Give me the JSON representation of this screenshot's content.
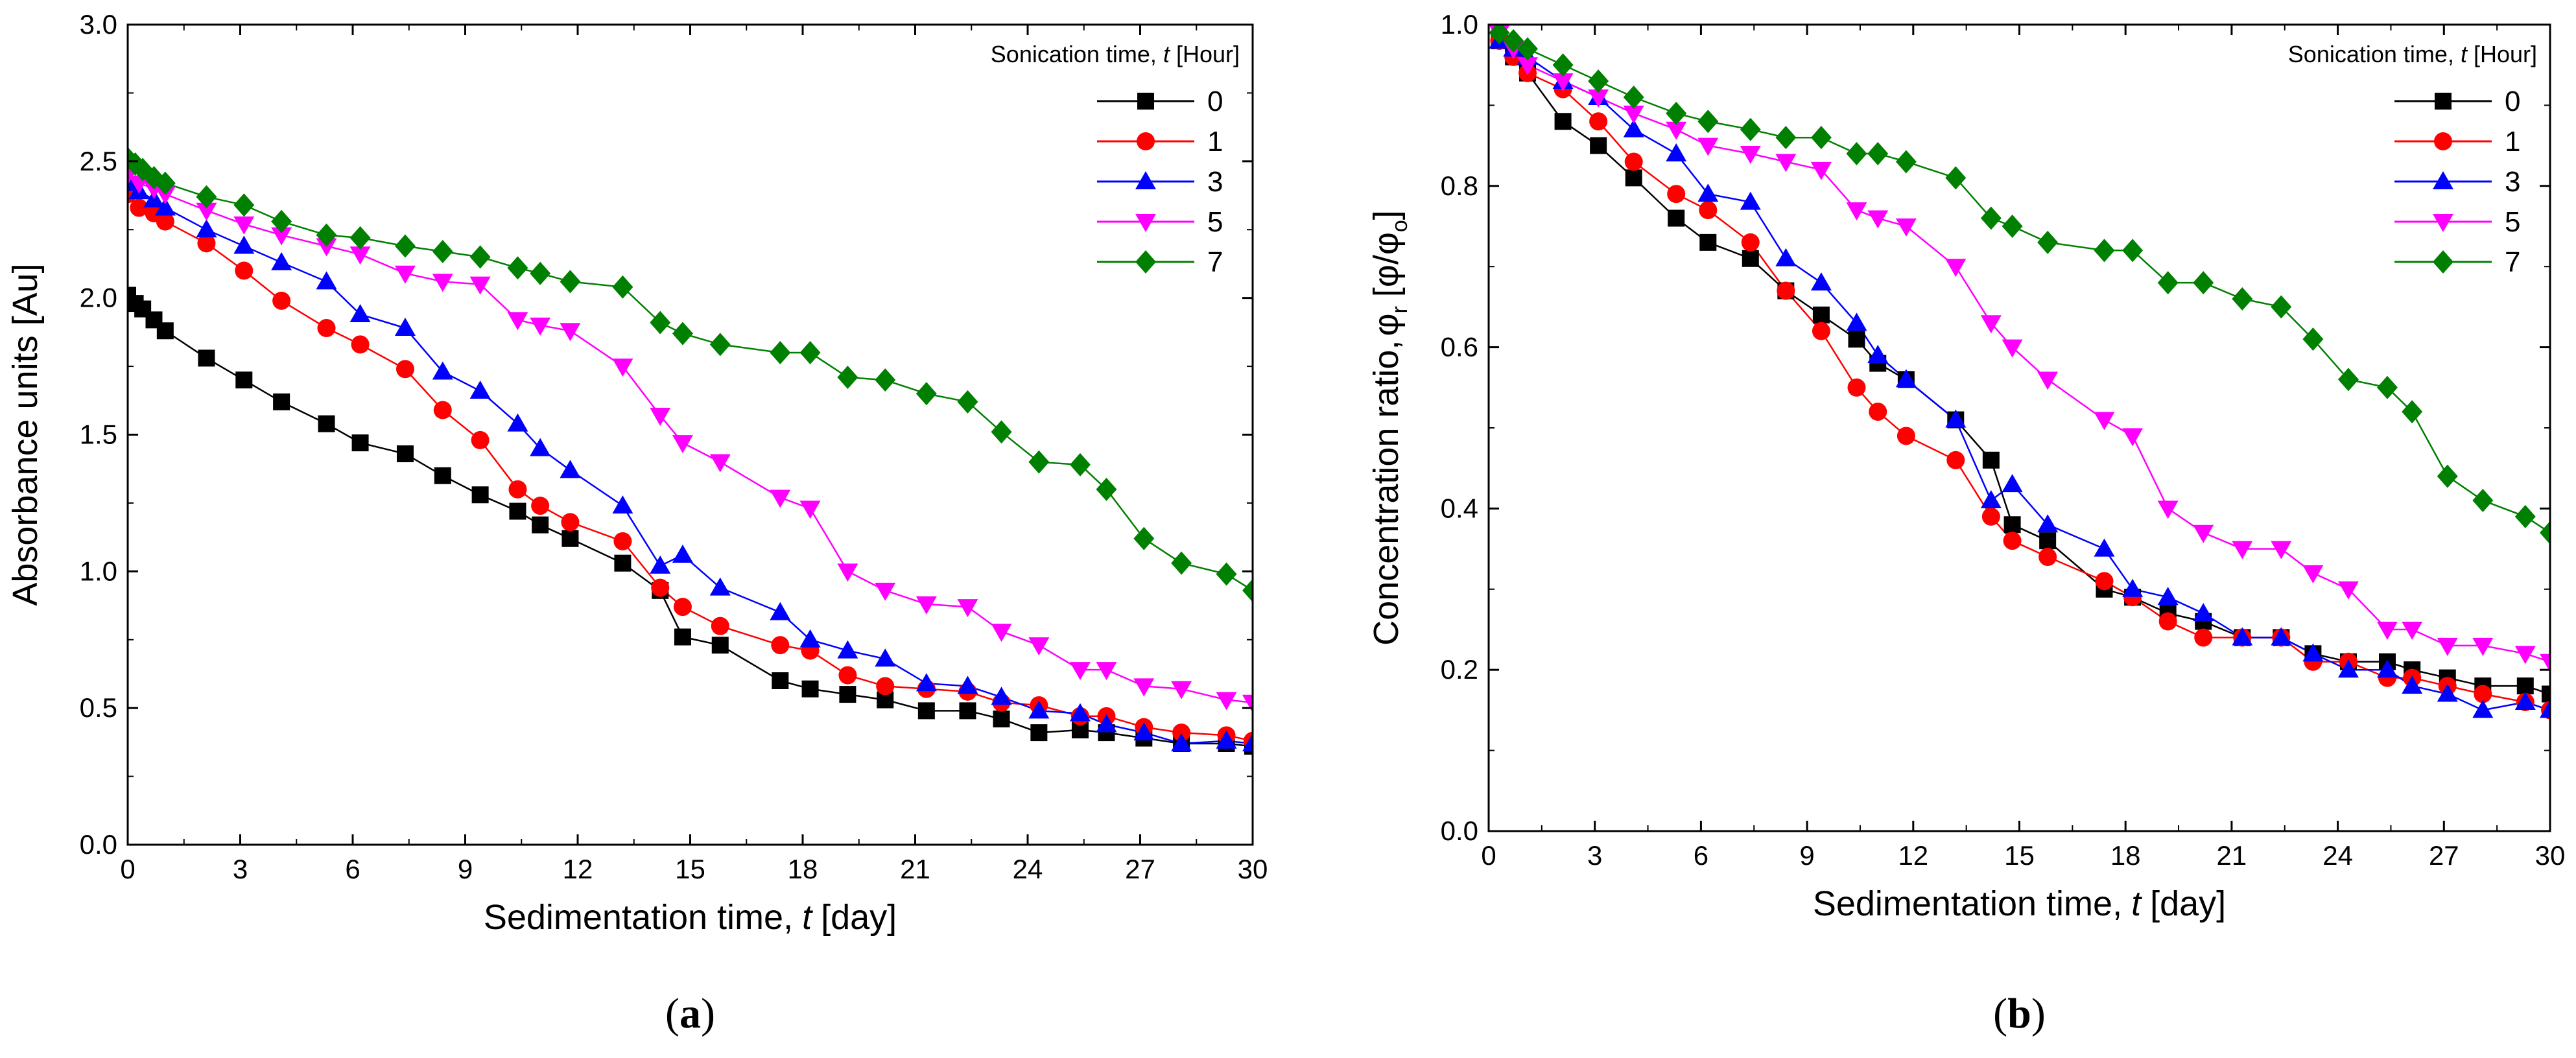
{
  "chart_data": [
    {
      "panel": "(a)",
      "panel_letter": "a",
      "type": "line",
      "xlabel": "Sedimentation time,",
      "xlabel_var": "t",
      "xlabel_unit": "[day]",
      "ylabel": "Absorbance units [Au]",
      "xlim": [
        0,
        30
      ],
      "ylim": [
        0,
        3.0
      ],
      "xticks": [
        0,
        3,
        6,
        9,
        12,
        15,
        18,
        21,
        24,
        27,
        30
      ],
      "yticks": [
        "0.0",
        "0.5",
        "1.0",
        "1.5",
        "2.0",
        "2.5",
        "3.0"
      ],
      "legend_title": "Sonication time,",
      "legend_title_var": "t",
      "legend_title_unit": "[Hour]",
      "legend_position": "top-right",
      "series": [
        {
          "name": "0",
          "color": "#000000",
          "marker": "square",
          "x": [
            0,
            0.2,
            0.4,
            0.7,
            1.0,
            2.1,
            3.1,
            4.1,
            5.3,
            6.2,
            7.4,
            8.4,
            9.4,
            10.4,
            11.0,
            11.8,
            13.2,
            14.2,
            14.8,
            15.8,
            17.4,
            18.2,
            19.2,
            20.2,
            21.3,
            22.4,
            23.3,
            24.3,
            25.4,
            26.1,
            27.1,
            28.1,
            29.3,
            30
          ],
          "y": [
            2.01,
            1.98,
            1.96,
            1.92,
            1.88,
            1.78,
            1.7,
            1.62,
            1.54,
            1.47,
            1.43,
            1.35,
            1.28,
            1.22,
            1.17,
            1.12,
            1.03,
            0.93,
            0.76,
            0.73,
            0.6,
            0.57,
            0.55,
            0.53,
            0.49,
            0.49,
            0.46,
            0.41,
            0.42,
            0.41,
            0.39,
            0.37,
            0.37,
            0.36
          ]
        },
        {
          "name": "1",
          "color": "#ff0000",
          "marker": "circle",
          "x": [
            0,
            0.3,
            0.7,
            1.0,
            2.1,
            3.1,
            4.1,
            5.3,
            6.2,
            7.4,
            8.4,
            9.4,
            10.4,
            11.0,
            11.8,
            13.2,
            14.2,
            14.8,
            15.8,
            17.4,
            18.2,
            19.2,
            20.2,
            21.3,
            22.4,
            23.3,
            24.3,
            25.4,
            26.1,
            27.1,
            28.1,
            29.3,
            30
          ],
          "y": [
            2.38,
            2.33,
            2.31,
            2.28,
            2.2,
            2.1,
            1.99,
            1.89,
            1.83,
            1.74,
            1.59,
            1.48,
            1.3,
            1.24,
            1.18,
            1.11,
            0.94,
            0.87,
            0.8,
            0.73,
            0.71,
            0.62,
            0.58,
            0.57,
            0.56,
            0.52,
            0.51,
            0.47,
            0.47,
            0.43,
            0.41,
            0.4,
            0.38
          ]
        },
        {
          "name": "3",
          "color": "#0000ff",
          "marker": "triangle-up",
          "x": [
            0,
            0.3,
            0.7,
            1.0,
            2.1,
            3.1,
            4.1,
            5.3,
            6.2,
            7.4,
            8.4,
            9.4,
            10.4,
            11.0,
            11.8,
            13.2,
            14.2,
            14.8,
            15.8,
            17.4,
            18.2,
            19.2,
            20.2,
            21.3,
            22.4,
            23.3,
            24.3,
            25.4,
            26.1,
            27.1,
            28.1,
            29.3,
            30
          ],
          "y": [
            2.42,
            2.39,
            2.36,
            2.33,
            2.25,
            2.19,
            2.13,
            2.06,
            1.94,
            1.89,
            1.73,
            1.66,
            1.54,
            1.45,
            1.37,
            1.24,
            1.02,
            1.06,
            0.94,
            0.85,
            0.75,
            0.71,
            0.68,
            0.59,
            0.58,
            0.54,
            0.49,
            0.48,
            0.44,
            0.41,
            0.37,
            0.38,
            0.37
          ]
        },
        {
          "name": "5",
          "color": "#ff00ff",
          "marker": "triangle-down",
          "x": [
            0,
            0.3,
            0.7,
            1.0,
            2.1,
            3.1,
            4.1,
            5.3,
            6.2,
            7.4,
            8.4,
            9.4,
            10.4,
            11.0,
            11.8,
            13.2,
            14.2,
            14.8,
            15.8,
            17.4,
            18.2,
            19.2,
            20.2,
            21.3,
            22.4,
            23.3,
            24.3,
            25.4,
            26.1,
            27.1,
            28.1,
            29.3,
            30
          ],
          "y": [
            2.45,
            2.42,
            2.4,
            2.38,
            2.32,
            2.27,
            2.23,
            2.19,
            2.16,
            2.09,
            2.06,
            2.05,
            1.92,
            1.9,
            1.88,
            1.75,
            1.57,
            1.47,
            1.4,
            1.27,
            1.23,
            1.0,
            0.93,
            0.88,
            0.87,
            0.78,
            0.73,
            0.64,
            0.64,
            0.58,
            0.57,
            0.53,
            0.52
          ]
        },
        {
          "name": "7",
          "color": "#008000",
          "marker": "diamond",
          "x": [
            0,
            0.2,
            0.4,
            0.7,
            1.0,
            2.1,
            3.1,
            4.1,
            5.3,
            6.2,
            7.4,
            8.4,
            9.4,
            10.4,
            11.0,
            11.8,
            13.2,
            14.2,
            14.8,
            15.8,
            17.4,
            18.2,
            19.2,
            20.2,
            21.3,
            22.4,
            23.3,
            24.3,
            25.4,
            26.1,
            27.1,
            28.1,
            29.3,
            30
          ],
          "y": [
            2.51,
            2.49,
            2.47,
            2.44,
            2.42,
            2.37,
            2.34,
            2.28,
            2.23,
            2.22,
            2.19,
            2.17,
            2.15,
            2.11,
            2.09,
            2.06,
            2.04,
            1.91,
            1.87,
            1.83,
            1.8,
            1.8,
            1.71,
            1.7,
            1.65,
            1.62,
            1.51,
            1.4,
            1.39,
            1.3,
            1.12,
            1.03,
            0.99,
            0.93
          ]
        }
      ]
    },
    {
      "panel": "(b)",
      "panel_letter": "b",
      "type": "line",
      "xlabel": "Sedimentation time,",
      "xlabel_var": "t",
      "xlabel_unit": "[day]",
      "ylabel": "Concentration ratio,",
      "ylabel_phi": "φ",
      "ylabel_sub_r": "r",
      "ylabel_bracket": "[φ/φ",
      "ylabel_sub_o": "o",
      "ylabel_close": "]",
      "xlim": [
        0,
        30
      ],
      "ylim": [
        0,
        1.0
      ],
      "xticks": [
        0,
        3,
        6,
        9,
        12,
        15,
        18,
        21,
        24,
        27,
        30
      ],
      "yticks": [
        "0.0",
        "0.2",
        "0.4",
        "0.6",
        "0.8",
        "1.0"
      ],
      "legend_title": "Sonication time,",
      "legend_title_var": "t",
      "legend_title_unit": "[Hour]",
      "legend_position": "top-right",
      "series": [
        {
          "name": "0",
          "color": "#000000",
          "marker": "square",
          "x": [
            0.3,
            0.7,
            1.1,
            2.1,
            3.1,
            4.1,
            5.3,
            6.2,
            7.4,
            8.4,
            9.4,
            10.4,
            11.0,
            11.8,
            13.2,
            14.2,
            14.8,
            15.8,
            17.4,
            18.2,
            19.2,
            20.2,
            21.3,
            22.4,
            23.3,
            24.3,
            25.4,
            26.1,
            27.1,
            28.1,
            29.3,
            30
          ],
          "y": [
            0.98,
            0.96,
            0.94,
            0.88,
            0.85,
            0.81,
            0.76,
            0.73,
            0.71,
            0.67,
            0.64,
            0.61,
            0.58,
            0.56,
            0.51,
            0.46,
            0.38,
            0.36,
            0.3,
            0.29,
            0.27,
            0.26,
            0.24,
            0.24,
            0.22,
            0.21,
            0.21,
            0.2,
            0.19,
            0.18,
            0.18,
            0.17
          ]
        },
        {
          "name": "1",
          "color": "#ff0000",
          "marker": "circle",
          "x": [
            0.3,
            0.7,
            1.1,
            2.1,
            3.1,
            4.1,
            5.3,
            6.2,
            7.4,
            8.4,
            9.4,
            10.4,
            11.0,
            11.8,
            13.2,
            14.2,
            14.8,
            15.8,
            17.4,
            18.2,
            19.2,
            20.2,
            21.3,
            22.4,
            23.3,
            24.3,
            25.4,
            26.1,
            27.1,
            28.1,
            29.3,
            30
          ],
          "y": [
            0.98,
            0.96,
            0.94,
            0.92,
            0.88,
            0.83,
            0.79,
            0.77,
            0.73,
            0.67,
            0.62,
            0.55,
            0.52,
            0.49,
            0.46,
            0.39,
            0.36,
            0.34,
            0.31,
            0.29,
            0.26,
            0.24,
            0.24,
            0.24,
            0.21,
            0.21,
            0.19,
            0.19,
            0.18,
            0.17,
            0.16,
            0.15
          ]
        },
        {
          "name": "3",
          "color": "#0000ff",
          "marker": "triangle-up",
          "x": [
            0.3,
            0.7,
            1.1,
            2.1,
            3.1,
            4.1,
            5.3,
            6.2,
            7.4,
            8.4,
            9.4,
            10.4,
            11.0,
            11.8,
            13.2,
            14.2,
            14.8,
            15.8,
            17.4,
            18.2,
            19.2,
            20.2,
            21.3,
            22.4,
            23.3,
            24.3,
            25.4,
            26.1,
            27.1,
            28.1,
            29.3,
            30
          ],
          "y": [
            0.98,
            0.97,
            0.96,
            0.93,
            0.91,
            0.87,
            0.84,
            0.79,
            0.78,
            0.71,
            0.68,
            0.63,
            0.59,
            0.56,
            0.51,
            0.41,
            0.43,
            0.38,
            0.35,
            0.3,
            0.29,
            0.27,
            0.24,
            0.24,
            0.22,
            0.2,
            0.2,
            0.18,
            0.17,
            0.15,
            0.16,
            0.15
          ]
        },
        {
          "name": "5",
          "color": "#ff00ff",
          "marker": "triangle-down",
          "x": [
            0.3,
            0.7,
            1.1,
            2.1,
            3.1,
            4.1,
            5.3,
            6.2,
            7.4,
            8.4,
            9.4,
            10.4,
            11.0,
            11.8,
            13.2,
            14.2,
            14.8,
            15.8,
            17.4,
            18.2,
            19.2,
            20.2,
            21.3,
            22.4,
            23.3,
            24.3,
            25.4,
            26.1,
            27.1,
            28.1,
            29.3,
            30
          ],
          "y": [
            0.99,
            0.97,
            0.95,
            0.93,
            0.91,
            0.89,
            0.87,
            0.85,
            0.84,
            0.83,
            0.82,
            0.77,
            0.76,
            0.75,
            0.7,
            0.63,
            0.6,
            0.56,
            0.51,
            0.49,
            0.4,
            0.37,
            0.35,
            0.35,
            0.32,
            0.3,
            0.25,
            0.25,
            0.23,
            0.23,
            0.22,
            0.21
          ]
        },
        {
          "name": "7",
          "color": "#008000",
          "marker": "diamond",
          "x": [
            0.3,
            0.7,
            1.1,
            2.1,
            3.1,
            4.1,
            5.3,
            6.2,
            7.4,
            8.4,
            9.4,
            10.4,
            11.0,
            11.8,
            13.2,
            14.2,
            14.8,
            15.8,
            17.4,
            18.2,
            19.2,
            20.2,
            21.3,
            22.4,
            23.3,
            24.3,
            25.4,
            26.1,
            27.1,
            28.1,
            29.3,
            30
          ],
          "y": [
            0.99,
            0.98,
            0.97,
            0.95,
            0.93,
            0.91,
            0.89,
            0.88,
            0.87,
            0.86,
            0.86,
            0.84,
            0.84,
            0.83,
            0.81,
            0.76,
            0.75,
            0.73,
            0.72,
            0.72,
            0.68,
            0.68,
            0.66,
            0.65,
            0.61,
            0.56,
            0.55,
            0.52,
            0.44,
            0.41,
            0.39,
            0.37
          ]
        }
      ]
    }
  ]
}
